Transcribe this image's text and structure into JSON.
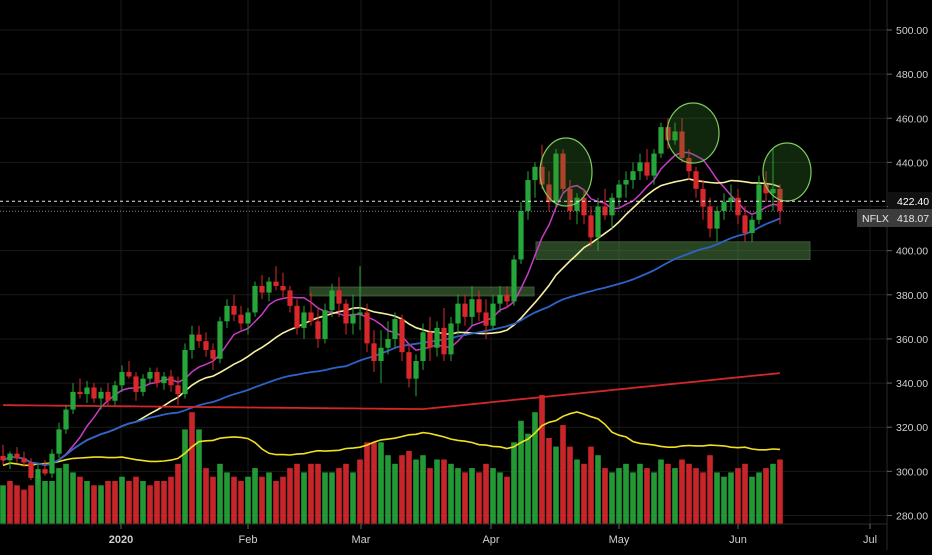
{
  "chart_data": {
    "type": "candlestick",
    "symbol": "NFLX",
    "last_price": "418.07",
    "ref_line_label": "422.40",
    "ref_line_value": 422.4,
    "ylim": [
      275,
      510
    ],
    "y_ticks": [
      "280.00",
      "300.00",
      "320.00",
      "340.00",
      "360.00",
      "380.00",
      "400.00",
      "420.00",
      "440.00",
      "460.00",
      "480.00",
      "500.00"
    ],
    "x_ticks": [
      "2020",
      "Feb",
      "Mar",
      "Apr",
      "May",
      "Jun",
      "Jul"
    ],
    "colors": {
      "up": "#26a63a",
      "down": "#d8282c",
      "ma_pink": "#c83cc8",
      "ma_yellow": "#f8f0a0",
      "ma_blue": "#2c64c8",
      "ma_red": "#d02828",
      "vol_ma": "#f0e020",
      "zone_fill": "#4c7c40",
      "axis_text": "#cfcfcf",
      "grid": "#1a1a1a"
    },
    "ohlc": [
      [
        307,
        312,
        303,
        305
      ],
      [
        305,
        309,
        301,
        308
      ],
      [
        308,
        311,
        304,
        306
      ],
      [
        306,
        309,
        302,
        304
      ],
      [
        304,
        306,
        296,
        297
      ],
      [
        297,
        303,
        294,
        301
      ],
      [
        301,
        305,
        298,
        299
      ],
      [
        299,
        310,
        297,
        308
      ],
      [
        308,
        322,
        306,
        319
      ],
      [
        319,
        330,
        317,
        328
      ],
      [
        328,
        340,
        326,
        336
      ],
      [
        336,
        342,
        333,
        335
      ],
      [
        335,
        341,
        331,
        338
      ],
      [
        338,
        340,
        331,
        333
      ],
      [
        333,
        338,
        328,
        336
      ],
      [
        336,
        340,
        330,
        332
      ],
      [
        332,
        341,
        330,
        339
      ],
      [
        339,
        348,
        336,
        345
      ],
      [
        345,
        350,
        342,
        343
      ],
      [
        343,
        345,
        332,
        336
      ],
      [
        336,
        344,
        334,
        342
      ],
      [
        342,
        347,
        340,
        345
      ],
      [
        345,
        347,
        338,
        340
      ],
      [
        340,
        345,
        337,
        343
      ],
      [
        343,
        346,
        336,
        339
      ],
      [
        339,
        343,
        330,
        335
      ],
      [
        335,
        358,
        333,
        355
      ],
      [
        355,
        366,
        351,
        362
      ],
      [
        362,
        366,
        356,
        359
      ],
      [
        359,
        363,
        352,
        355
      ],
      [
        355,
        358,
        346,
        351
      ],
      [
        351,
        370,
        349,
        368
      ],
      [
        368,
        378,
        365,
        375
      ],
      [
        375,
        380,
        368,
        371
      ],
      [
        371,
        375,
        364,
        367
      ],
      [
        367,
        374,
        362,
        372
      ],
      [
        372,
        386,
        370,
        384
      ],
      [
        384,
        389,
        378,
        381
      ],
      [
        381,
        388,
        377,
        386
      ],
      [
        386,
        393,
        382,
        384
      ],
      [
        384,
        390,
        379,
        382
      ],
      [
        382,
        384,
        372,
        375
      ],
      [
        375,
        378,
        362,
        365
      ],
      [
        365,
        375,
        360,
        372
      ],
      [
        372,
        381,
        366,
        368
      ],
      [
        368,
        374,
        356,
        360
      ],
      [
        360,
        376,
        358,
        373
      ],
      [
        373,
        385,
        370,
        382
      ],
      [
        382,
        388,
        370,
        376
      ],
      [
        376,
        378,
        362,
        367
      ],
      [
        367,
        380,
        362,
        371
      ],
      [
        371,
        393,
        364,
        372
      ],
      [
        372,
        376,
        354,
        358
      ],
      [
        358,
        364,
        345,
        350
      ],
      [
        350,
        364,
        340,
        356
      ],
      [
        356,
        368,
        353,
        360
      ],
      [
        360,
        372,
        356,
        369
      ],
      [
        369,
        371,
        350,
        354
      ],
      [
        354,
        358,
        338,
        342
      ],
      [
        342,
        353,
        334,
        350
      ],
      [
        350,
        367,
        346,
        363
      ],
      [
        363,
        370,
        350,
        356
      ],
      [
        356,
        368,
        352,
        365
      ],
      [
        365,
        374,
        350,
        353
      ],
      [
        353,
        370,
        350,
        367
      ],
      [
        367,
        380,
        362,
        376
      ],
      [
        376,
        380,
        366,
        370
      ],
      [
        370,
        384,
        366,
        378
      ],
      [
        378,
        382,
        368,
        372
      ],
      [
        372,
        378,
        360,
        366
      ],
      [
        366,
        380,
        364,
        376
      ],
      [
        376,
        384,
        372,
        380
      ],
      [
        380,
        384,
        374,
        377
      ],
      [
        377,
        398,
        375,
        396
      ],
      [
        396,
        422,
        394,
        418
      ],
      [
        418,
        436,
        414,
        432
      ],
      [
        432,
        440,
        424,
        438
      ],
      [
        438,
        448,
        428,
        430
      ],
      [
        430,
        436,
        418,
        422
      ],
      [
        422,
        446,
        420,
        444
      ],
      [
        444,
        446,
        426,
        428
      ],
      [
        428,
        432,
        414,
        418
      ],
      [
        418,
        426,
        412,
        424
      ],
      [
        424,
        428,
        412,
        416
      ],
      [
        416,
        420,
        402,
        406
      ],
      [
        406,
        424,
        400,
        420
      ],
      [
        420,
        428,
        414,
        416
      ],
      [
        416,
        426,
        410,
        424
      ],
      [
        424,
        432,
        420,
        430
      ],
      [
        430,
        436,
        424,
        432
      ],
      [
        432,
        440,
        428,
        436
      ],
      [
        436,
        444,
        432,
        440
      ],
      [
        440,
        446,
        432,
        434
      ],
      [
        434,
        446,
        430,
        444
      ],
      [
        444,
        458,
        442,
        456
      ],
      [
        456,
        460,
        446,
        450
      ],
      [
        450,
        458,
        448,
        454
      ],
      [
        454,
        460,
        440,
        442
      ],
      [
        442,
        446,
        432,
        436
      ],
      [
        436,
        438,
        424,
        428
      ],
      [
        428,
        432,
        414,
        420
      ],
      [
        420,
        424,
        406,
        410
      ],
      [
        410,
        420,
        404,
        418
      ],
      [
        418,
        426,
        414,
        422
      ],
      [
        422,
        430,
        418,
        424
      ],
      [
        424,
        428,
        412,
        416
      ],
      [
        416,
        420,
        404,
        408
      ],
      [
        408,
        416,
        404,
        414
      ],
      [
        414,
        434,
        412,
        430
      ],
      [
        430,
        436,
        422,
        426
      ],
      [
        426,
        446,
        418,
        428
      ],
      [
        428,
        430,
        412,
        418
      ]
    ],
    "volume": [
      [
        9,
        "up"
      ],
      [
        10,
        "down"
      ],
      [
        9,
        "down"
      ],
      [
        8,
        "down"
      ],
      [
        9,
        "down"
      ],
      [
        11,
        "up"
      ],
      [
        10,
        "up"
      ],
      [
        10,
        "up"
      ],
      [
        13,
        "up"
      ],
      [
        14,
        "up"
      ],
      [
        12,
        "up"
      ],
      [
        11,
        "down"
      ],
      [
        10,
        "up"
      ],
      [
        9,
        "down"
      ],
      [
        9,
        "up"
      ],
      [
        10,
        "down"
      ],
      [
        10,
        "down"
      ],
      [
        11,
        "up"
      ],
      [
        10,
        "down"
      ],
      [
        11,
        "down"
      ],
      [
        10,
        "up"
      ],
      [
        9,
        "down"
      ],
      [
        10,
        "down"
      ],
      [
        10,
        "down"
      ],
      [
        11,
        "down"
      ],
      [
        14,
        "down"
      ],
      [
        22,
        "up"
      ],
      [
        26,
        "down"
      ],
      [
        22,
        "up"
      ],
      [
        13,
        "down"
      ],
      [
        11,
        "down"
      ],
      [
        14,
        "up"
      ],
      [
        12,
        "up"
      ],
      [
        11,
        "down"
      ],
      [
        10,
        "down"
      ],
      [
        11,
        "up"
      ],
      [
        13,
        "up"
      ],
      [
        11,
        "down"
      ],
      [
        12,
        "up"
      ],
      [
        10,
        "down"
      ],
      [
        11,
        "down"
      ],
      [
        13,
        "down"
      ],
      [
        14,
        "down"
      ],
      [
        12,
        "up"
      ],
      [
        14,
        "down"
      ],
      [
        14,
        "down"
      ],
      [
        12,
        "up"
      ],
      [
        12,
        "up"
      ],
      [
        13,
        "down"
      ],
      [
        14,
        "down"
      ],
      [
        12,
        "up"
      ],
      [
        15,
        "down"
      ],
      [
        19,
        "down"
      ],
      [
        19,
        "down"
      ],
      [
        19,
        "up"
      ],
      [
        16,
        "up"
      ],
      [
        14,
        "up"
      ],
      [
        16,
        "down"
      ],
      [
        17,
        "down"
      ],
      [
        15,
        "up"
      ],
      [
        16,
        "up"
      ],
      [
        13,
        "down"
      ],
      [
        15,
        "up"
      ],
      [
        15,
        "down"
      ],
      [
        14,
        "up"
      ],
      [
        13,
        "up"
      ],
      [
        12,
        "down"
      ],
      [
        13,
        "up"
      ],
      [
        12,
        "down"
      ],
      [
        14,
        "down"
      ],
      [
        13,
        "up"
      ],
      [
        12,
        "up"
      ],
      [
        11,
        "down"
      ],
      [
        19,
        "up"
      ],
      [
        24,
        "up"
      ],
      [
        21,
        "up"
      ],
      [
        26,
        "up"
      ],
      [
        30,
        "down"
      ],
      [
        20,
        "down"
      ],
      [
        18,
        "up"
      ],
      [
        23,
        "down"
      ],
      [
        18,
        "down"
      ],
      [
        15,
        "up"
      ],
      [
        14,
        "down"
      ],
      [
        18,
        "down"
      ],
      [
        16,
        "up"
      ],
      [
        13,
        "down"
      ],
      [
        12,
        "up"
      ],
      [
        13,
        "up"
      ],
      [
        14,
        "up"
      ],
      [
        12,
        "up"
      ],
      [
        14,
        "up"
      ],
      [
        13,
        "down"
      ],
      [
        12,
        "up"
      ],
      [
        15,
        "up"
      ],
      [
        14,
        "down"
      ],
      [
        13,
        "up"
      ],
      [
        15,
        "down"
      ],
      [
        14,
        "down"
      ],
      [
        13,
        "down"
      ],
      [
        12,
        "down"
      ],
      [
        16,
        "down"
      ],
      [
        12,
        "up"
      ],
      [
        11,
        "up"
      ],
      [
        12,
        "up"
      ],
      [
        13,
        "down"
      ],
      [
        14,
        "down"
      ],
      [
        11,
        "up"
      ],
      [
        12,
        "up"
      ],
      [
        13,
        "down"
      ],
      [
        14,
        "up"
      ],
      [
        15,
        "down"
      ]
    ]
  }
}
